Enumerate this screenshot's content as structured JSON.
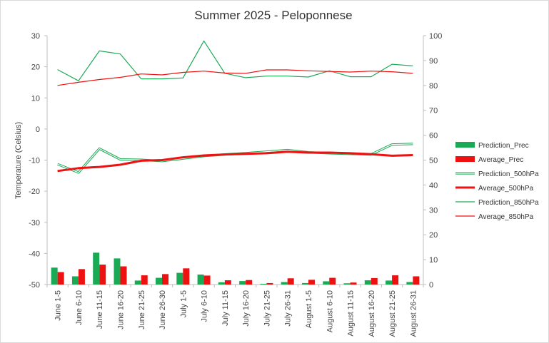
{
  "chart_data": {
    "type": "bar",
    "title": "Summer 2025 - Peloponnese",
    "ylabel": "Temperature (Celsius)",
    "ylim": [
      -50,
      30
    ],
    "yticks": [
      30,
      20,
      10,
      0,
      -10,
      -20,
      -30,
      -40,
      -50
    ],
    "y2lim": [
      0,
      100
    ],
    "y2ticks": [
      100,
      90,
      80,
      70,
      60,
      50,
      40,
      30,
      20,
      10,
      0
    ],
    "categories": [
      "June 1-5",
      "June 6-10",
      "June 11-15",
      "June 16-20",
      "June 21-25",
      "June 26-30",
      "July 1-5",
      "July 6-10",
      "July 11-15",
      "July 16-20",
      "July 21-25",
      "July 26-31",
      "August 1-5",
      "August 6-10",
      "August 11-15",
      "August 16-20",
      "August 21-25",
      "August 26-31"
    ],
    "grid": false,
    "legend": "right",
    "bar_series": [
      {
        "name": "Prediction_Prec",
        "color": "#1aaa55",
        "axis": "secondary",
        "values": [
          6.8,
          3.3,
          12.8,
          10.5,
          1.6,
          2.7,
          4.7,
          4.0,
          0.9,
          1.4,
          0.3,
          1.0,
          0.6,
          1.3,
          0.5,
          1.7,
          1.6,
          1.0
        ]
      },
      {
        "name": "Average_Prec",
        "color": "#ee1111",
        "axis": "secondary",
        "values": [
          5.0,
          6.2,
          8.0,
          7.3,
          3.7,
          4.2,
          6.5,
          3.6,
          1.7,
          1.8,
          0.6,
          2.5,
          1.9,
          2.7,
          0.8,
          2.6,
          3.7,
          3.3
        ]
      }
    ],
    "line_series": [
      {
        "name": "Prediction_500hPa",
        "color": "#1aaa55",
        "style": "double",
        "axis": "primary",
        "values": [
          -11.3,
          -14.0,
          -6.3,
          -9.8,
          -9.9,
          -10.3,
          -9.5,
          -8.7,
          -8.2,
          -7.8,
          -7.3,
          -6.8,
          -7.5,
          -7.8,
          -8.0,
          -8.2,
          -5.0,
          -4.8
        ]
      },
      {
        "name": "Average_500hPa",
        "color": "#ee1111",
        "style": "thick",
        "axis": "primary",
        "values": [
          -13.5,
          -12.6,
          -12.2,
          -11.5,
          -10.2,
          -10.0,
          -9.1,
          -8.5,
          -8.2,
          -8.0,
          -7.8,
          -7.3,
          -7.6,
          -7.6,
          -7.8,
          -8.1,
          -8.6,
          -8.4
        ]
      },
      {
        "name": "Prediction_850hPa",
        "color": "#1aaa55",
        "style": "thin",
        "axis": "primary",
        "values": [
          19.1,
          15.5,
          25.1,
          24.1,
          16.1,
          16.1,
          16.4,
          28.3,
          17.9,
          16.5,
          17.0,
          17.0,
          16.7,
          18.7,
          16.8,
          16.8,
          20.8,
          20.3
        ]
      },
      {
        "name": "Average_850hPa",
        "color": "#ee1111",
        "style": "thin",
        "axis": "primary",
        "values": [
          14.0,
          15.0,
          15.9,
          16.6,
          17.7,
          17.4,
          18.2,
          18.6,
          18.0,
          17.9,
          19.0,
          19.0,
          18.7,
          18.5,
          18.3,
          18.6,
          18.4,
          17.9
        ]
      }
    ]
  }
}
